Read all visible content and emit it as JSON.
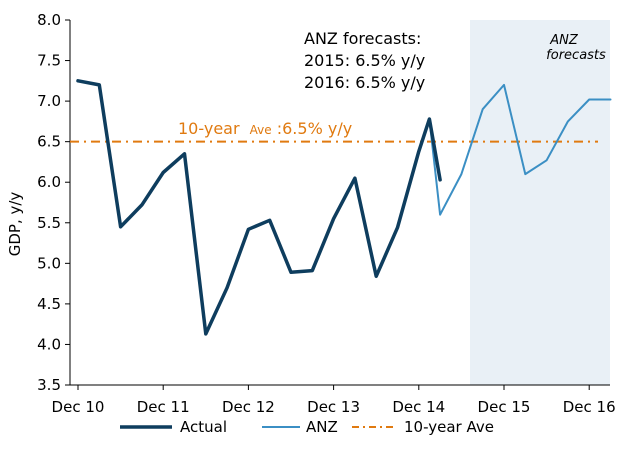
{
  "chart_data": {
    "type": "line",
    "ylabel": "GDP, y/y",
    "ylim": [
      3.5,
      8.0
    ],
    "yticks": [
      "3.5",
      "4.0",
      "4.5",
      "5.0",
      "5.5",
      "6.0",
      "6.5",
      "7.0",
      "7.5",
      "8.0"
    ],
    "xticks": [
      "Dec 10",
      "Dec 11",
      "Dec 12",
      "Dec 13",
      "Dec 14",
      "Dec 15",
      "Dec 16"
    ],
    "x_quarter_index_of_ticks": [
      0,
      4,
      8,
      12,
      16,
      20,
      24
    ],
    "forecast_region_label_line1": "ANZ",
    "forecast_region_label_line2": "forecasts",
    "annotation_line1": "ANZ forecasts:",
    "annotation_line2": "2015:  6.5% y/y",
    "annotation_line3": "2016:  6.5% y/y",
    "average_label_main": "10-year",
    "average_label_small": "Ave",
    "average_label_value": ":6.5% y/y",
    "average_value": 6.5,
    "series": [
      {
        "name": "Actual",
        "color": "#0E3D5E",
        "x": [
          0,
          1,
          2,
          3,
          4,
          5,
          6,
          7,
          8,
          9,
          10,
          11,
          12,
          13,
          14,
          15,
          16,
          16.5,
          17
        ],
        "values": [
          7.25,
          7.2,
          5.45,
          5.72,
          6.12,
          6.35,
          4.13,
          4.7,
          5.42,
          5.53,
          4.89,
          4.91,
          5.55,
          6.05,
          4.84,
          5.44,
          6.38,
          6.78,
          6.03
        ]
      },
      {
        "name": "ANZ",
        "color": "#3B8FC4",
        "x": [
          16,
          16.5,
          17,
          18,
          19,
          20,
          21,
          22,
          23,
          24,
          25
        ],
        "values": [
          6.38,
          6.78,
          5.6,
          6.1,
          6.9,
          7.2,
          6.1,
          6.27,
          6.75,
          7.02,
          7.02
        ]
      }
    ],
    "legend": [
      {
        "label": "Actual",
        "color": "#0E3D5E",
        "style": "solid"
      },
      {
        "label": "ANZ",
        "color": "#3B8FC4",
        "style": "solid"
      },
      {
        "label": "10-year Ave",
        "color": "#E07A10",
        "style": "dashdot"
      }
    ],
    "legend_position": "bottom",
    "forecast_shade_color": "#E9F0F6",
    "grid": false
  }
}
